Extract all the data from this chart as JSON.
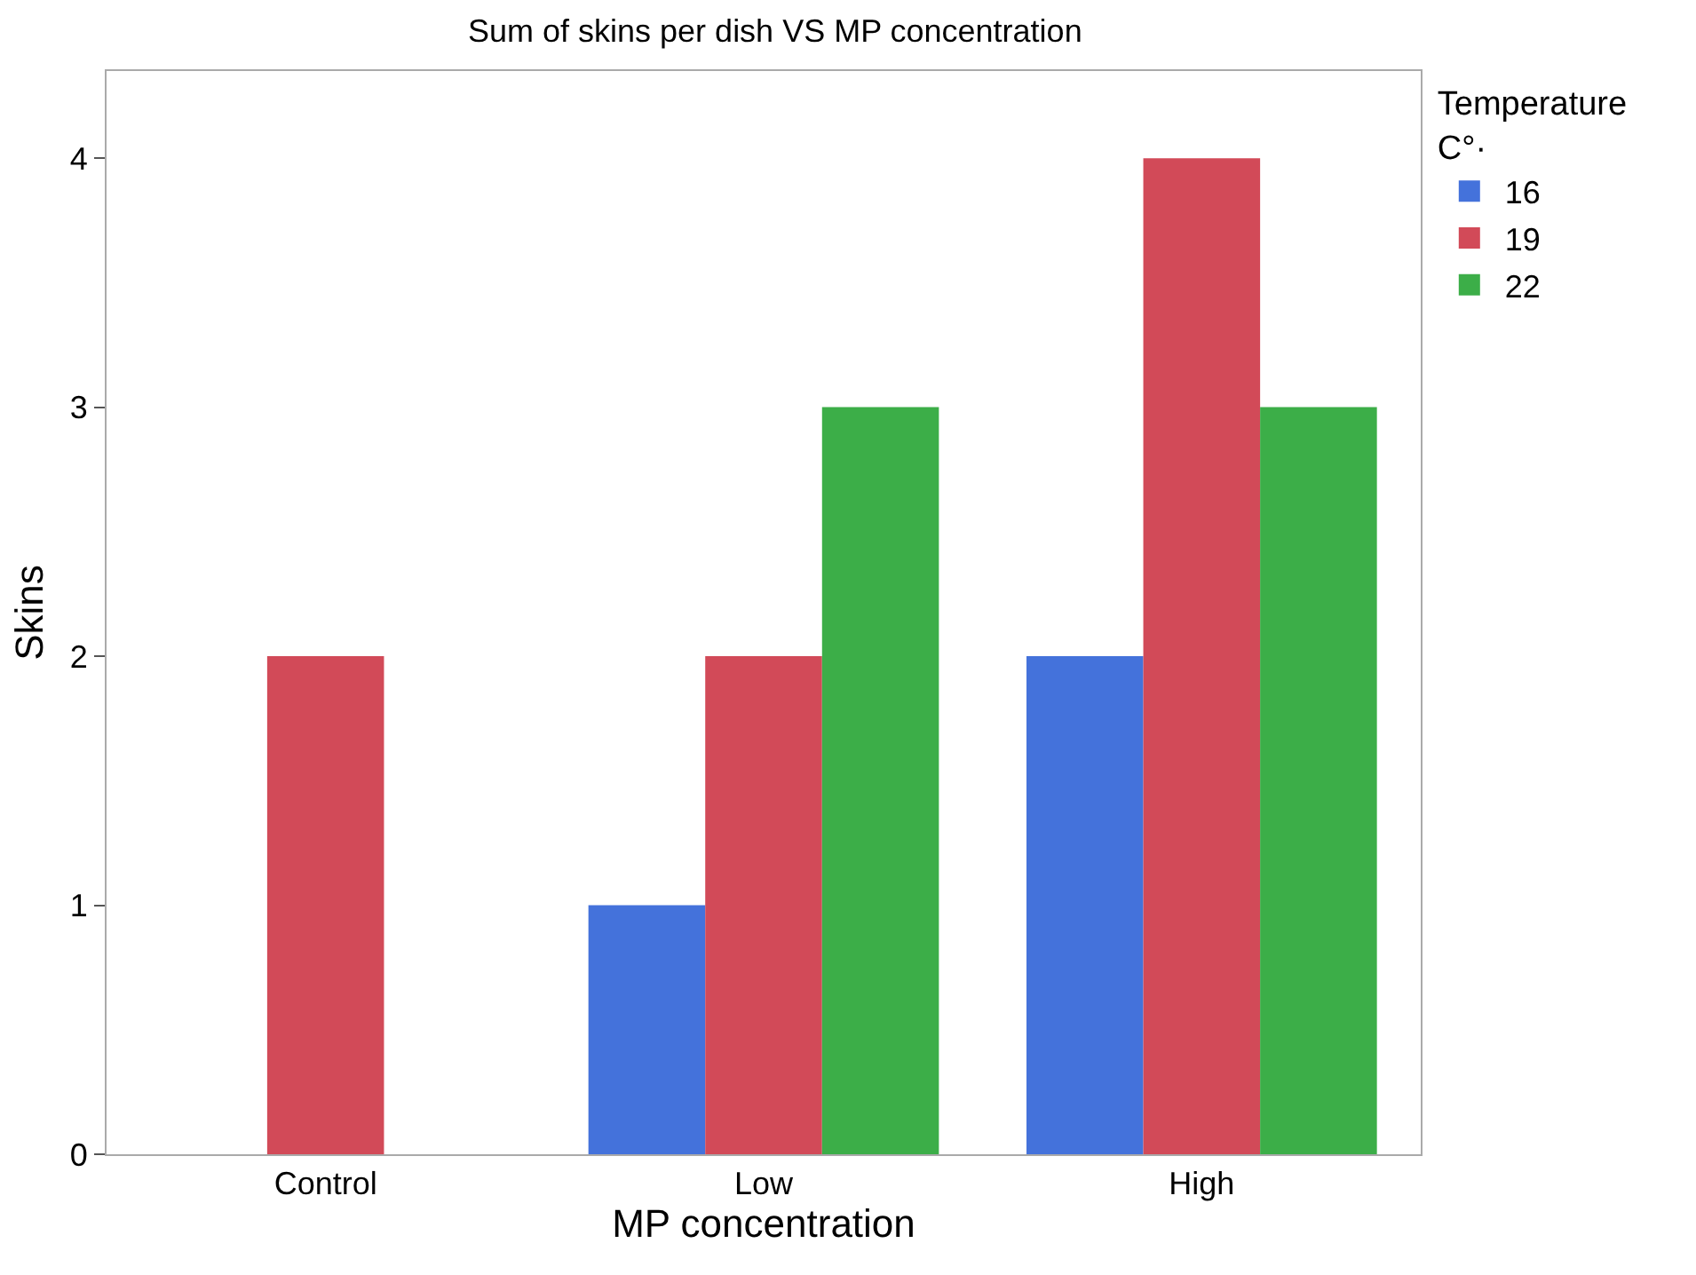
{
  "chart_data": {
    "type": "bar",
    "title": "Sum of skins per dish VS MP concentration",
    "xlabel": "MP concentration",
    "ylabel": "Skins",
    "legend_title": "Temperature\nC°·",
    "categories": [
      "Control",
      "Low",
      "High"
    ],
    "series": [
      {
        "name": "16",
        "color": "#4472db",
        "values": [
          0,
          1,
          2
        ]
      },
      {
        "name": "19",
        "color": "#d24a58",
        "values": [
          2,
          2,
          4
        ]
      },
      {
        "name": "22",
        "color": "#3cae48",
        "values": [
          0,
          3,
          3
        ]
      }
    ],
    "ylim": [
      0,
      4.35
    ],
    "yticks": [
      0,
      1,
      2,
      3,
      4
    ],
    "grid": false,
    "legend": "top right"
  }
}
